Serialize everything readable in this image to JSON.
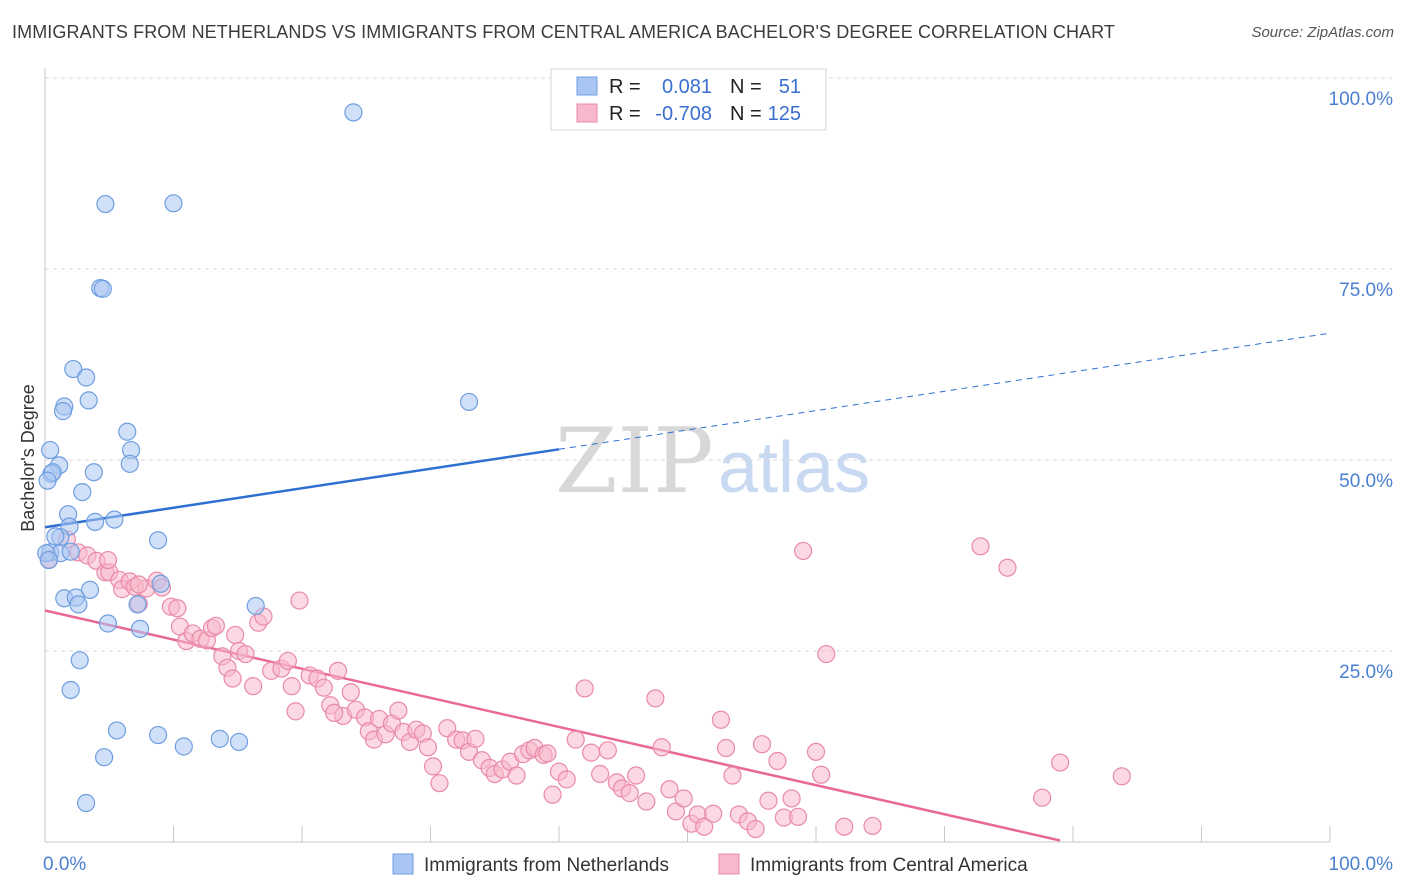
{
  "title": "IMMIGRANTS FROM NETHERLANDS VS IMMIGRANTS FROM CENTRAL AMERICA BACHELOR'S DEGREE CORRELATION CHART",
  "source": "Source: ZipAtlas.com",
  "watermark": {
    "zip": "ZIP",
    "atlas": "atlas"
  },
  "stats": [
    {
      "r_label": "R =",
      "r_value": "0.081",
      "n_label": "N =",
      "n_value": "51"
    },
    {
      "r_label": "R =",
      "r_value": "-0.708",
      "n_label": "N =",
      "n_value": "125"
    }
  ],
  "legend": [
    "Immigrants from Netherlands",
    "Immigrants from Central America"
  ],
  "colors": {
    "blue_fill": "#a9c6f2",
    "blue_stroke": "#6f9ee0",
    "blue_line": "#2f6fd0",
    "pink_fill": "#f7b8cb",
    "pink_stroke": "#e98aa8",
    "pink_line": "#e8689a",
    "grid": "#d9d9d9",
    "tick_text": "#4a7fd0"
  },
  "chart_data": {
    "type": "scatter",
    "title": "IMMIGRANTS FROM NETHERLANDS VS IMMIGRANTS FROM CENTRAL AMERICA BACHELOR'S DEGREE CORRELATION CHART",
    "xlabel": "",
    "ylabel": "Bachelor's Degree",
    "xlim": [
      0,
      100
    ],
    "ylim": [
      0,
      100
    ],
    "x_tick_labels": [
      "0.0%",
      "100.0%"
    ],
    "y_ticks": [
      25,
      50,
      75,
      100
    ],
    "y_tick_labels": [
      "25.0%",
      "50.0%",
      "75.0%",
      "100.0%"
    ],
    "grid": true,
    "legend_position": "bottom",
    "series": [
      {
        "name": "Immigrants from Netherlands",
        "color": "#a9c6f2",
        "trend": {
          "x": [
            0,
            40
          ],
          "y": [
            41.2,
            51.4
          ],
          "dashed_to": [
            100,
            66.6
          ]
        },
        "points": [
          [
            24.0,
            95.5
          ],
          [
            4.7,
            83.5
          ],
          [
            10.0,
            83.6
          ],
          [
            4.3,
            72.5
          ],
          [
            4.5,
            72.4
          ],
          [
            2.2,
            61.9
          ],
          [
            3.2,
            60.8
          ],
          [
            3.4,
            57.8
          ],
          [
            1.5,
            57.0
          ],
          [
            1.4,
            56.4
          ],
          [
            33.0,
            57.6
          ],
          [
            6.4,
            53.7
          ],
          [
            6.7,
            51.3
          ],
          [
            0.4,
            51.3
          ],
          [
            6.6,
            49.5
          ],
          [
            1.1,
            49.3
          ],
          [
            0.5,
            48.2
          ],
          [
            0.6,
            48.4
          ],
          [
            3.8,
            48.4
          ],
          [
            0.2,
            47.3
          ],
          [
            2.9,
            45.8
          ],
          [
            1.8,
            42.9
          ],
          [
            1.9,
            41.3
          ],
          [
            3.9,
            41.9
          ],
          [
            5.4,
            42.2
          ],
          [
            1.2,
            39.9
          ],
          [
            0.8,
            40.0
          ],
          [
            0.4,
            37.9
          ],
          [
            1.2,
            37.8
          ],
          [
            2.0,
            38.0
          ],
          [
            8.8,
            39.5
          ],
          [
            9.0,
            33.8
          ],
          [
            3.5,
            33.0
          ],
          [
            1.5,
            31.9
          ],
          [
            2.4,
            32.0
          ],
          [
            2.6,
            31.1
          ],
          [
            7.2,
            31.1
          ],
          [
            16.4,
            30.9
          ],
          [
            4.9,
            28.6
          ],
          [
            7.4,
            27.9
          ],
          [
            2.7,
            23.8
          ],
          [
            2.0,
            19.9
          ],
          [
            5.6,
            14.6
          ],
          [
            8.8,
            14.0
          ],
          [
            10.8,
            12.5
          ],
          [
            13.6,
            13.5
          ],
          [
            15.1,
            13.1
          ],
          [
            4.6,
            11.1
          ],
          [
            3.2,
            5.1
          ],
          [
            0.1,
            37.8
          ],
          [
            0.3,
            36.9
          ]
        ]
      },
      {
        "name": "Immigrants from Central America",
        "color": "#f7b8cb",
        "trend": {
          "x": [
            0,
            79
          ],
          "y": [
            30.3,
            0.2
          ]
        },
        "points": [
          [
            0.3,
            37.0
          ],
          [
            1.7,
            39.6
          ],
          [
            2.6,
            37.9
          ],
          [
            3.3,
            37.5
          ],
          [
            4.0,
            36.8
          ],
          [
            4.7,
            35.3
          ],
          [
            5.0,
            35.3
          ],
          [
            4.9,
            36.9
          ],
          [
            5.8,
            34.3
          ],
          [
            6.0,
            33.1
          ],
          [
            6.6,
            34.1
          ],
          [
            7.3,
            31.2
          ],
          [
            7.0,
            33.4
          ],
          [
            7.9,
            33.2
          ],
          [
            8.7,
            34.2
          ],
          [
            9.1,
            33.3
          ],
          [
            9.8,
            30.8
          ],
          [
            10.3,
            30.6
          ],
          [
            10.5,
            28.2
          ],
          [
            11.0,
            26.3
          ],
          [
            11.5,
            27.3
          ],
          [
            12.1,
            26.6
          ],
          [
            12.6,
            26.4
          ],
          [
            13.0,
            28.0
          ],
          [
            13.3,
            28.3
          ],
          [
            13.8,
            24.3
          ],
          [
            14.2,
            22.8
          ],
          [
            14.6,
            21.4
          ],
          [
            15.1,
            25.0
          ],
          [
            15.6,
            24.6
          ],
          [
            16.2,
            20.4
          ],
          [
            16.6,
            28.7
          ],
          [
            17.0,
            29.5
          ],
          [
            17.6,
            22.4
          ],
          [
            18.4,
            22.7
          ],
          [
            18.9,
            23.7
          ],
          [
            19.2,
            20.4
          ],
          [
            19.5,
            17.1
          ],
          [
            19.8,
            31.6
          ],
          [
            20.6,
            21.8
          ],
          [
            21.2,
            21.4
          ],
          [
            21.7,
            20.2
          ],
          [
            22.2,
            17.9
          ],
          [
            22.8,
            22.4
          ],
          [
            23.2,
            16.5
          ],
          [
            23.8,
            19.6
          ],
          [
            24.2,
            17.3
          ],
          [
            24.9,
            16.3
          ],
          [
            25.2,
            14.5
          ],
          [
            25.6,
            13.4
          ],
          [
            26.0,
            16.1
          ],
          [
            26.5,
            14.1
          ],
          [
            27.0,
            15.5
          ],
          [
            27.5,
            17.2
          ],
          [
            27.9,
            14.4
          ],
          [
            28.4,
            13.1
          ],
          [
            28.9,
            14.7
          ],
          [
            29.4,
            14.2
          ],
          [
            29.8,
            12.4
          ],
          [
            30.2,
            9.9
          ],
          [
            30.7,
            7.7
          ],
          [
            31.3,
            14.9
          ],
          [
            32.0,
            13.4
          ],
          [
            32.5,
            13.3
          ],
          [
            33.0,
            11.8
          ],
          [
            33.5,
            13.5
          ],
          [
            34.0,
            10.7
          ],
          [
            34.6,
            9.7
          ],
          [
            35.0,
            8.9
          ],
          [
            35.6,
            9.5
          ],
          [
            36.2,
            10.5
          ],
          [
            36.7,
            8.7
          ],
          [
            37.2,
            11.5
          ],
          [
            37.7,
            12.0
          ],
          [
            38.1,
            12.3
          ],
          [
            38.8,
            11.4
          ],
          [
            39.1,
            11.6
          ],
          [
            39.5,
            6.2
          ],
          [
            40.0,
            9.2
          ],
          [
            40.6,
            8.2
          ],
          [
            41.3,
            13.4
          ],
          [
            42.0,
            20.1
          ],
          [
            42.5,
            11.7
          ],
          [
            43.2,
            8.9
          ],
          [
            43.8,
            12.0
          ],
          [
            44.5,
            7.8
          ],
          [
            44.9,
            7.0
          ],
          [
            45.5,
            6.4
          ],
          [
            46.0,
            8.7
          ],
          [
            46.8,
            5.3
          ],
          [
            47.5,
            18.8
          ],
          [
            48.0,
            12.4
          ],
          [
            48.6,
            6.9
          ],
          [
            49.1,
            4.0
          ],
          [
            49.7,
            5.7
          ],
          [
            50.3,
            2.4
          ],
          [
            50.8,
            3.6
          ],
          [
            51.3,
            2.0
          ],
          [
            52.0,
            3.7
          ],
          [
            52.6,
            16.0
          ],
          [
            53.0,
            12.3
          ],
          [
            53.5,
            8.7
          ],
          [
            54.0,
            3.6
          ],
          [
            54.7,
            2.7
          ],
          [
            55.3,
            1.7
          ],
          [
            55.8,
            12.8
          ],
          [
            56.3,
            5.4
          ],
          [
            57.0,
            10.6
          ],
          [
            57.5,
            3.2
          ],
          [
            58.1,
            5.7
          ],
          [
            58.6,
            3.3
          ],
          [
            59.0,
            38.1
          ],
          [
            60.0,
            11.8
          ],
          [
            60.4,
            8.8
          ],
          [
            60.8,
            24.6
          ],
          [
            62.2,
            2.0
          ],
          [
            64.4,
            2.1
          ],
          [
            72.8,
            38.7
          ],
          [
            74.9,
            35.9
          ],
          [
            77.6,
            5.8
          ],
          [
            79.0,
            10.4
          ],
          [
            83.8,
            8.6
          ],
          [
            7.3,
            33.7
          ],
          [
            14.8,
            27.1
          ],
          [
            22.5,
            16.9
          ]
        ]
      }
    ]
  }
}
